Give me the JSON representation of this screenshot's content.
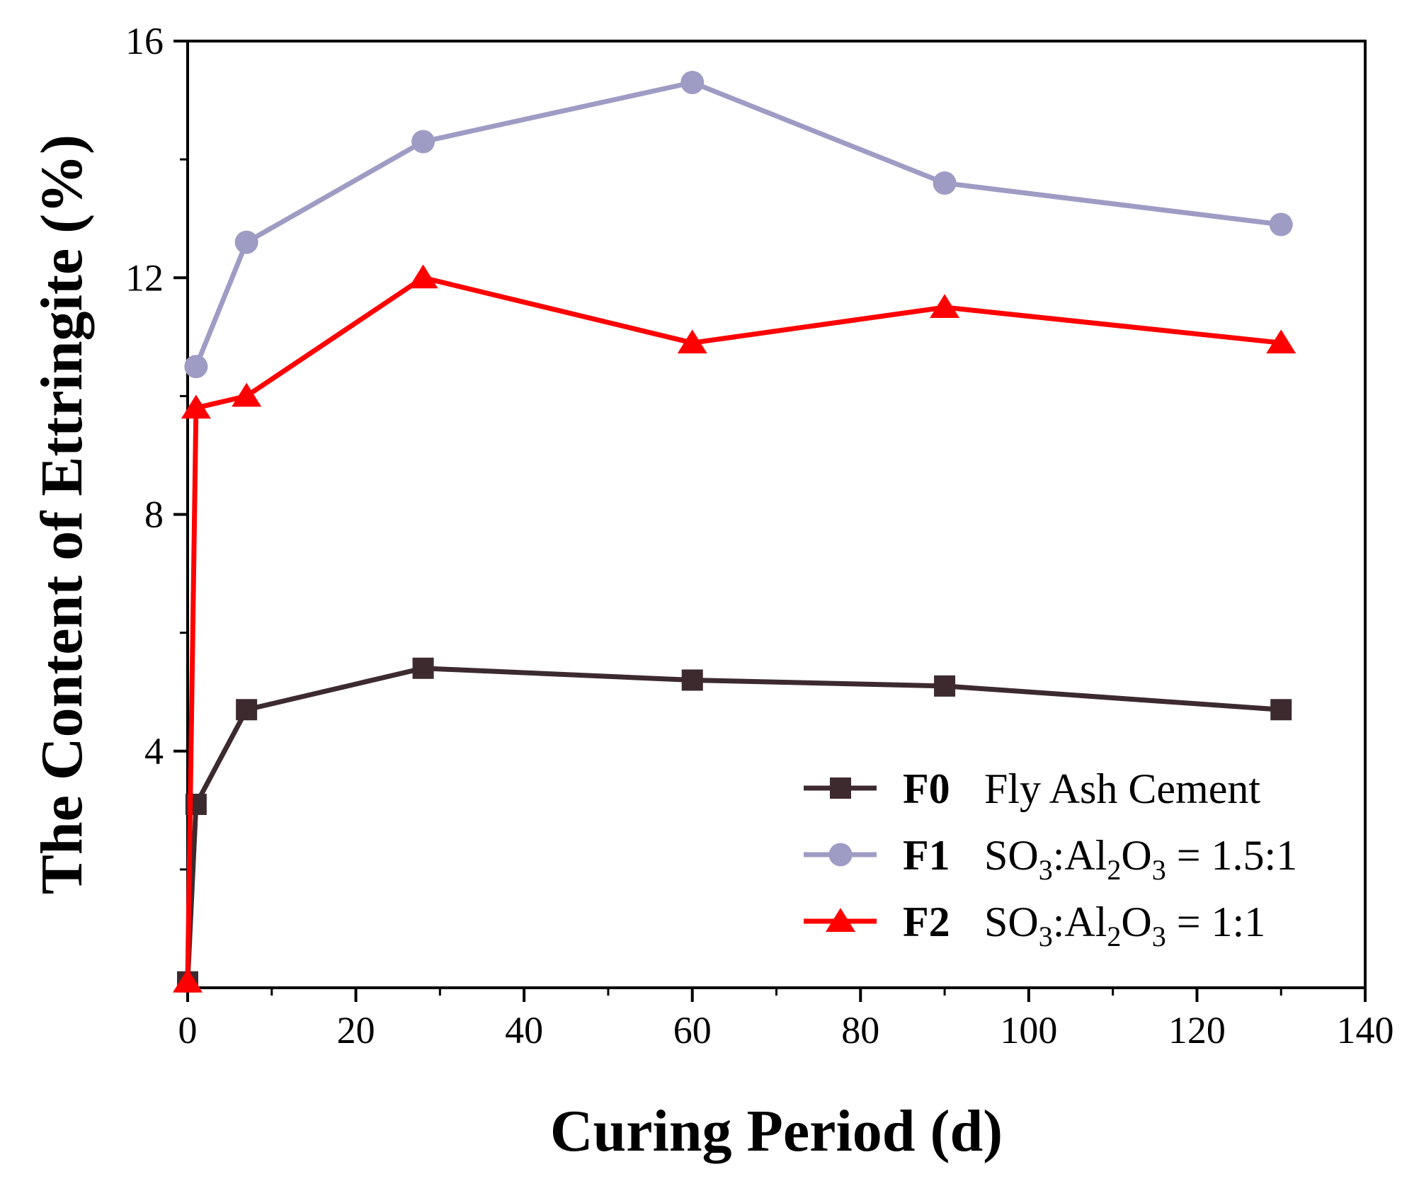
{
  "chart_data": {
    "type": "line",
    "title": "",
    "xlabel": "Curing Period (d)",
    "ylabel": "The Content of Ettringite (%)",
    "xlim": [
      0,
      140
    ],
    "ylim": [
      0,
      16
    ],
    "xticks": [
      0,
      20,
      40,
      60,
      80,
      100,
      120,
      140
    ],
    "yticks": [
      4,
      8,
      12,
      16
    ],
    "grid": false,
    "legend_position": "bottom-right",
    "series": [
      {
        "name": "F0",
        "description": "Fly Ash Cement",
        "desc_parts": [
          {
            "text": "Fly Ash Cement",
            "sub": false
          }
        ],
        "color": "#3d2a2e",
        "marker": "square",
        "x": [
          0,
          1,
          7,
          28,
          60,
          90,
          130
        ],
        "y": [
          0.1,
          3.1,
          4.7,
          5.4,
          5.2,
          5.1,
          4.7
        ]
      },
      {
        "name": "F1",
        "description": "SO3:Al2O3 = 1.5:1",
        "desc_parts": [
          {
            "text": "SO",
            "sub": false
          },
          {
            "text": "3",
            "sub": true
          },
          {
            "text": ":Al",
            "sub": false
          },
          {
            "text": "2",
            "sub": true
          },
          {
            "text": "O",
            "sub": false
          },
          {
            "text": "3",
            "sub": true
          },
          {
            "text": " = 1.5:1",
            "sub": false
          }
        ],
        "color": "#9e9cc4",
        "marker": "circle",
        "x": [
          1,
          7,
          28,
          60,
          90,
          130
        ],
        "y": [
          10.5,
          12.6,
          14.3,
          15.3,
          13.6,
          12.9
        ]
      },
      {
        "name": "F2",
        "description": "SO3:Al2O3 = 1:1",
        "desc_parts": [
          {
            "text": "SO",
            "sub": false
          },
          {
            "text": "3",
            "sub": true
          },
          {
            "text": ":Al",
            "sub": false
          },
          {
            "text": "2",
            "sub": true
          },
          {
            "text": "O",
            "sub": false
          },
          {
            "text": "3",
            "sub": true
          },
          {
            "text": " = 1:1",
            "sub": false
          }
        ],
        "color": "#ff0000",
        "marker": "triangle",
        "x": [
          0,
          1,
          7,
          28,
          60,
          90,
          130
        ],
        "y": [
          0.1,
          9.8,
          10.0,
          12.0,
          10.9,
          11.5,
          10.9
        ]
      }
    ]
  }
}
